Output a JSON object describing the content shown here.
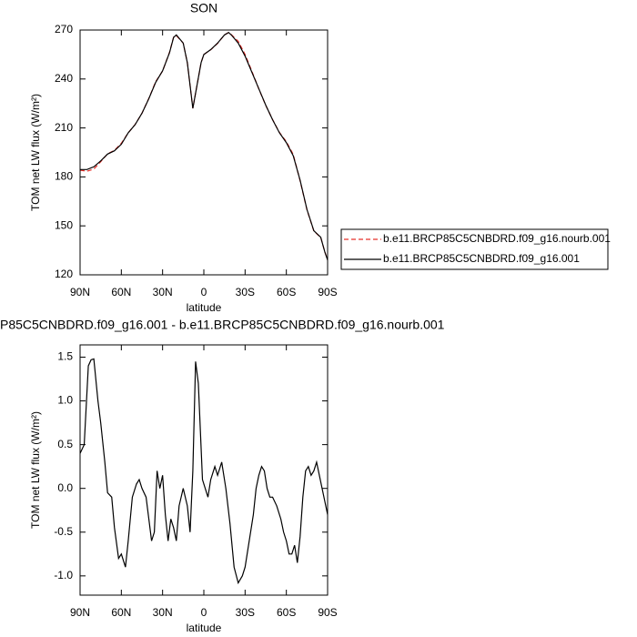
{
  "chart_data": [
    {
      "type": "line",
      "title": "SON",
      "xlabel": "latitude",
      "ylabel": "TOM net LW flux (W/m²)",
      "x": [
        90,
        85,
        80,
        75,
        70,
        65,
        60,
        55,
        50,
        45,
        40,
        35,
        30,
        25,
        22,
        20,
        15,
        12,
        8,
        5,
        2,
        0,
        -5,
        -10,
        -15,
        -18,
        -20,
        -25,
        -30,
        -35,
        -40,
        -45,
        -50,
        -55,
        -60,
        -65,
        -70,
        -75,
        -80,
        -85,
        -88,
        -90
      ],
      "series": [
        {
          "name": "b.e11.BRCP85C5CNBDRD.f09_g16.nourb.001",
          "color": "#e8302a",
          "line_style": "dashed",
          "values": [
            184.1,
            183.5,
            184.8,
            189.3,
            194.1,
            196.3,
            200.6,
            207.0,
            212.1,
            219.0,
            228.1,
            238.4,
            244.9,
            256.3,
            265.6,
            266.6,
            262.0,
            250.0,
            222.0,
            236.0,
            250.0,
            255.0,
            257.9,
            261.8,
            267.0,
            268.5,
            267.2,
            263.1,
            255.0,
            244.6,
            233.9,
            223.9,
            215.1,
            207.2,
            201.6,
            193.8,
            177.6,
            159.8,
            146.8,
            142.9,
            134.0,
            129.3
          ]
        },
        {
          "name": "b.e11.BRCP85C5CNBDRD.f09_g16.001",
          "color": "#000000",
          "line_style": "solid",
          "values": [
            184.5,
            184.5,
            186.2,
            189.8,
            194.0,
            196.0,
            200.0,
            207.0,
            212.0,
            219.0,
            228.0,
            238.0,
            245.0,
            256.0,
            265.5,
            267.0,
            262.0,
            250.0,
            222.0,
            236.0,
            250.0,
            255.0,
            258.0,
            262.0,
            267.0,
            268.5,
            267.0,
            262.0,
            254.0,
            244.0,
            234.0,
            224.0,
            215.0,
            207.0,
            201.0,
            193.0,
            178.0,
            160.0,
            147.0,
            143.0,
            134.0,
            129.0
          ]
        }
      ],
      "xlim": [
        90,
        -90
      ],
      "ylim": [
        120,
        270
      ],
      "xticks": [
        {
          "value": 90,
          "label": "90N"
        },
        {
          "value": 60,
          "label": "60N"
        },
        {
          "value": 30,
          "label": "30N"
        },
        0,
        {
          "value": -30,
          "label": "30S"
        },
        {
          "value": -60,
          "label": "60S"
        },
        {
          "value": -90,
          "label": "90S"
        }
      ],
      "yticks": [
        120,
        150,
        180,
        210,
        240,
        270
      ],
      "legend": "right"
    },
    {
      "type": "line",
      "title": "P85C5CNBDRD.f09_g16.001 - b.e11.BRCP85C5CNBDRD.f09_g16.nourb.001",
      "xlabel": "latitude",
      "ylabel": "TOM net LW flux (W/m²)",
      "x": [
        90,
        87,
        84,
        82,
        80,
        77,
        75,
        72,
        70,
        67,
        65,
        62,
        60,
        57,
        55,
        52,
        49,
        47,
        45,
        42,
        40,
        38,
        36,
        34,
        32,
        30,
        28,
        26,
        24,
        22,
        20,
        18,
        15,
        12,
        10,
        8,
        6,
        4,
        1,
        -3,
        -5,
        -8,
        -10,
        -13,
        -16,
        -19,
        -22,
        -25,
        -28,
        -30,
        -33,
        -36,
        -38,
        -40,
        -42,
        -44,
        -46,
        -48,
        -50,
        -53,
        -56,
        -58,
        -60,
        -62,
        -64,
        -66,
        -68,
        -70,
        -72,
        -74,
        -76,
        -78,
        -80,
        -82,
        -84,
        -86,
        -90
      ],
      "series": [
        {
          "color": "#000000",
          "values": [
            0.4,
            0.5,
            1.4,
            1.47,
            1.48,
            1.0,
            0.75,
            0.3,
            -0.05,
            -0.1,
            -0.45,
            -0.8,
            -0.75,
            -0.9,
            -0.6,
            -0.1,
            0.05,
            0.1,
            0.0,
            -0.1,
            -0.35,
            -0.6,
            -0.5,
            0.2,
            0.0,
            0.15,
            -0.3,
            -0.6,
            -0.35,
            -0.45,
            -0.6,
            -0.2,
            0.0,
            -0.2,
            -0.5,
            0.2,
            1.45,
            1.2,
            0.1,
            -0.1,
            0.1,
            0.25,
            0.15,
            0.3,
            0.0,
            -0.4,
            -0.9,
            -1.08,
            -1.0,
            -0.9,
            -0.6,
            -0.3,
            0.0,
            0.15,
            0.25,
            0.2,
            0.0,
            -0.1,
            -0.1,
            -0.2,
            -0.35,
            -0.5,
            -0.6,
            -0.75,
            -0.75,
            -0.65,
            -0.85,
            -0.55,
            -0.1,
            0.2,
            0.25,
            0.15,
            0.2,
            0.3,
            0.15,
            0.0,
            -0.3
          ]
        }
      ],
      "xlim": [
        90,
        -90
      ],
      "ylim": [
        -1.22,
        1.64
      ],
      "xticks": [
        {
          "value": 90,
          "label": "90N"
        },
        {
          "value": 60,
          "label": "60N"
        },
        {
          "value": 30,
          "label": "30N"
        },
        0,
        {
          "value": -30,
          "label": "30S"
        },
        {
          "value": -60,
          "label": "60S"
        },
        {
          "value": -90,
          "label": "90S"
        }
      ],
      "yticks": [
        {
          "value": -1,
          "label": "-1.0"
        },
        -0.5,
        {
          "value": 0,
          "label": "0.0"
        },
        0.5,
        {
          "value": 1,
          "label": "1.0"
        },
        1.5
      ]
    }
  ]
}
